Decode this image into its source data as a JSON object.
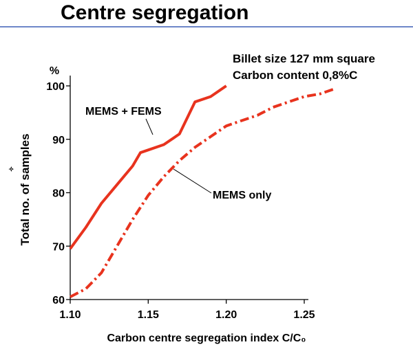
{
  "page": {
    "title": "Centre segregation",
    "rule_color": "#6d86c8"
  },
  "chart_data": {
    "type": "line",
    "title": "",
    "annotations": [
      "Billet size 127 mm square",
      "Carbon content 0,8%C"
    ],
    "xlabel": "Carbon centre segregation index C/C₀",
    "ylabel": "Total no. of samples",
    "y_unit_label": "%",
    "xlim": [
      1.1,
      1.25
    ],
    "ylim": [
      60,
      100
    ],
    "x_ticks": [
      1.1,
      1.15,
      1.2,
      1.25
    ],
    "x_tick_labels": [
      "1.10",
      "1.15",
      "1.20",
      "1.25"
    ],
    "y_ticks": [
      60,
      70,
      80,
      90,
      100
    ],
    "y_tick_labels": [
      "60",
      "70",
      "80",
      "90",
      "100"
    ],
    "grid": false,
    "series": [
      {
        "name": "MEMS + FEMS",
        "style": "solid",
        "color": "#e8331e",
        "x": [
          1.1,
          1.11,
          1.12,
          1.13,
          1.14,
          1.145,
          1.15,
          1.16,
          1.17,
          1.18,
          1.19,
          1.2
        ],
        "y": [
          69.5,
          73.5,
          78,
          81.5,
          85,
          87.5,
          88,
          89,
          91,
          97,
          98,
          100
        ]
      },
      {
        "name": "MEMS only",
        "style": "dash-dot",
        "color": "#e8331e",
        "x": [
          1.1,
          1.11,
          1.12,
          1.13,
          1.14,
          1.15,
          1.16,
          1.17,
          1.18,
          1.19,
          1.2,
          1.21,
          1.22,
          1.23,
          1.24,
          1.25,
          1.26,
          1.27
        ],
        "y": [
          60.5,
          62,
          65,
          70,
          75,
          79.5,
          83,
          86,
          88.5,
          90.5,
          92.5,
          93.5,
          94.5,
          96,
          97,
          98,
          98.5,
          99.5
        ]
      }
    ]
  }
}
